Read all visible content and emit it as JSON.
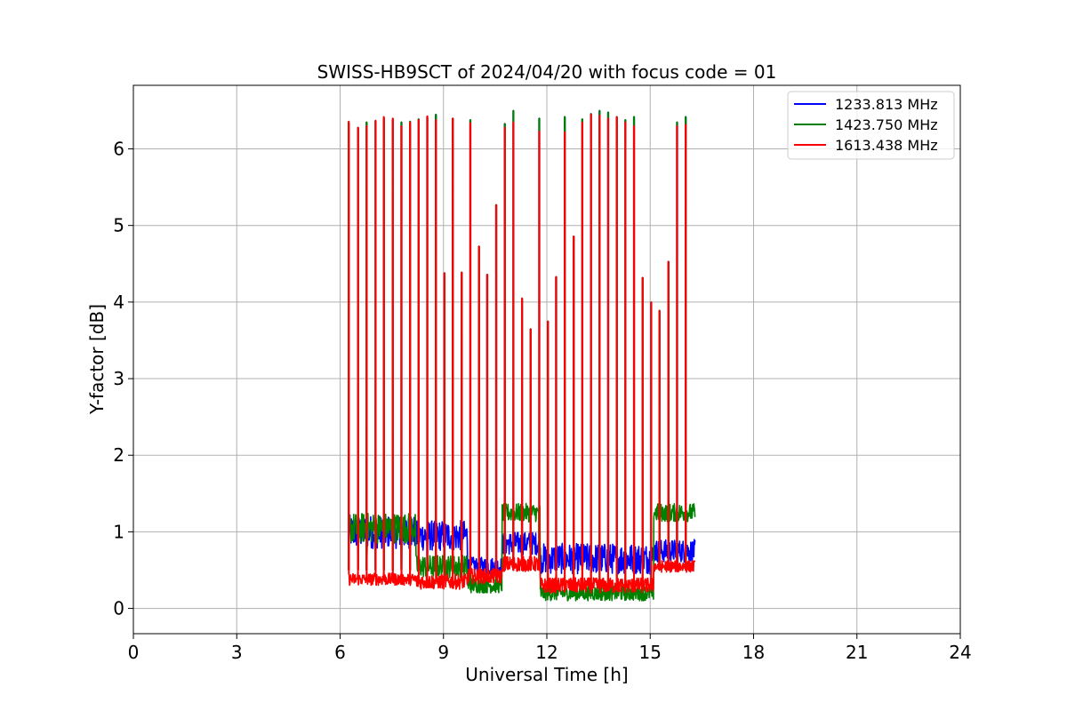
{
  "chart_data": {
    "type": "line",
    "title": "SWISS-HB9SCT of 2024/04/20 with focus code = 01",
    "xlabel": "Universal Time [h]",
    "ylabel": "Y-factor [dB]",
    "xlim": [
      0,
      24
    ],
    "ylim": [
      -0.33,
      6.83
    ],
    "xticks": [
      0,
      3,
      6,
      9,
      12,
      15,
      18,
      21,
      24
    ],
    "yticks": [
      0,
      1,
      2,
      3,
      4,
      5,
      6
    ],
    "grid": true,
    "legend_position": "top-right",
    "baseline_segments": [
      {
        "x": [
          6.25,
          8.2
        ],
        "base": [
          1.0,
          1.05,
          0.38
        ],
        "amp": [
          0.22,
          0.2,
          0.08
        ]
      },
      {
        "x": [
          8.2,
          9.7
        ],
        "base": [
          0.95,
          0.55,
          0.35
        ],
        "amp": [
          0.2,
          0.15,
          0.1
        ]
      },
      {
        "x": [
          9.7,
          10.7
        ],
        "base": [
          0.55,
          0.3,
          0.42
        ],
        "amp": [
          0.12,
          0.1,
          0.1
        ]
      },
      {
        "x": [
          10.7,
          11.8
        ],
        "base": [
          0.85,
          1.25,
          0.58
        ],
        "amp": [
          0.15,
          0.12,
          0.1
        ]
      },
      {
        "x": [
          11.8,
          15.1
        ],
        "base": [
          0.65,
          0.2,
          0.3
        ],
        "amp": [
          0.2,
          0.1,
          0.1
        ]
      },
      {
        "x": [
          15.1,
          16.3
        ],
        "base": [
          0.75,
          1.25,
          0.55
        ],
        "amp": [
          0.15,
          0.12,
          0.08
        ]
      }
    ],
    "spikes": [
      {
        "x": 6.25,
        "y": [
          6.34,
          6.34,
          6.36
        ]
      },
      {
        "x": 6.52,
        "y": [
          6.28,
          6.28,
          6.28
        ]
      },
      {
        "x": 6.77,
        "y": [
          6.35,
          6.35,
          6.3
        ]
      },
      {
        "x": 7.03,
        "y": [
          6.37,
          6.37,
          6.37
        ]
      },
      {
        "x": 7.27,
        "y": [
          6.4,
          6.4,
          6.42
        ]
      },
      {
        "x": 7.53,
        "y": [
          6.38,
          6.38,
          6.4
        ]
      },
      {
        "x": 7.78,
        "y": [
          6.35,
          6.35,
          6.3
        ]
      },
      {
        "x": 8.03,
        "y": [
          6.36,
          6.36,
          6.35
        ]
      },
      {
        "x": 8.28,
        "y": [
          6.39,
          6.39,
          6.38
        ]
      },
      {
        "x": 8.53,
        "y": [
          6.42,
          6.42,
          6.43
        ]
      },
      {
        "x": 8.78,
        "y": [
          6.45,
          6.45,
          6.38
        ]
      },
      {
        "x": 9.03,
        "y": [
          4.38,
          4.38,
          4.38
        ]
      },
      {
        "x": 9.27,
        "y": [
          6.4,
          6.4,
          6.4
        ]
      },
      {
        "x": 9.53,
        "y": [
          4.39,
          4.39,
          4.39
        ]
      },
      {
        "x": 9.78,
        "y": [
          6.38,
          6.38,
          6.34
        ]
      },
      {
        "x": 10.03,
        "y": [
          4.73,
          4.73,
          4.73
        ]
      },
      {
        "x": 10.27,
        "y": [
          4.36,
          4.36,
          4.36
        ]
      },
      {
        "x": 10.53,
        "y": [
          5.27,
          5.27,
          5.27
        ]
      },
      {
        "x": 10.78,
        "y": [
          6.33,
          6.33,
          6.28
        ]
      },
      {
        "x": 11.03,
        "y": [
          6.5,
          6.5,
          6.35
        ]
      },
      {
        "x": 11.28,
        "y": [
          4.05,
          4.05,
          4.05
        ]
      },
      {
        "x": 11.53,
        "y": [
          3.65,
          3.65,
          3.65
        ]
      },
      {
        "x": 11.78,
        "y": [
          6.4,
          6.4,
          6.23
        ]
      },
      {
        "x": 12.03,
        "y": [
          3.75,
          3.75,
          3.75
        ]
      },
      {
        "x": 12.27,
        "y": [
          4.33,
          4.33,
          4.33
        ]
      },
      {
        "x": 12.52,
        "y": [
          6.42,
          6.42,
          6.22
        ]
      },
      {
        "x": 12.78,
        "y": [
          4.86,
          4.86,
          4.86
        ]
      },
      {
        "x": 13.03,
        "y": [
          6.39,
          6.39,
          6.35
        ]
      },
      {
        "x": 13.28,
        "y": [
          6.46,
          6.46,
          6.45
        ]
      },
      {
        "x": 13.53,
        "y": [
          6.5,
          6.5,
          6.44
        ]
      },
      {
        "x": 13.78,
        "y": [
          6.48,
          6.48,
          6.4
        ]
      },
      {
        "x": 14.03,
        "y": [
          6.42,
          6.42,
          6.42
        ]
      },
      {
        "x": 14.28,
        "y": [
          6.38,
          6.38,
          6.35
        ]
      },
      {
        "x": 14.53,
        "y": [
          6.42,
          6.42,
          6.3
        ]
      },
      {
        "x": 14.78,
        "y": [
          4.32,
          4.32,
          4.32
        ]
      },
      {
        "x": 15.03,
        "y": [
          4.0,
          4.0,
          4.0
        ]
      },
      {
        "x": 15.27,
        "y": [
          3.89,
          3.89,
          3.89
        ]
      },
      {
        "x": 15.53,
        "y": [
          4.53,
          4.53,
          4.53
        ]
      },
      {
        "x": 15.78,
        "y": [
          6.35,
          6.35,
          6.3
        ]
      },
      {
        "x": 16.03,
        "y": [
          6.42,
          6.42,
          6.32
        ]
      }
    ],
    "series": [
      {
        "name": "1233.813 MHz",
        "color": "#0000ff"
      },
      {
        "name": "1423.750 MHz",
        "color": "#008000"
      },
      {
        "name": "1613.438 MHz",
        "color": "#ff0000"
      }
    ]
  }
}
